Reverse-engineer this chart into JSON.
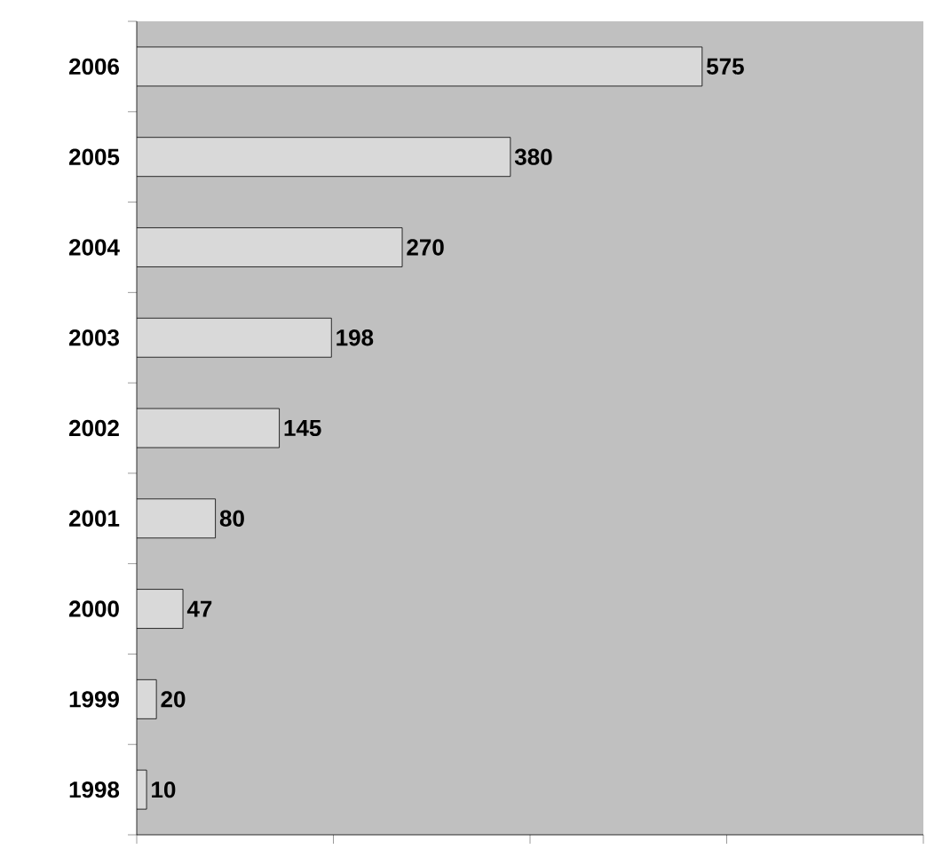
{
  "chart_data": {
    "type": "bar",
    "orientation": "horizontal",
    "categories": [
      "2006",
      "2005",
      "2004",
      "2003",
      "2002",
      "2001",
      "2000",
      "1999",
      "1998"
    ],
    "values": [
      575,
      380,
      270,
      198,
      145,
      80,
      47,
      20,
      10
    ],
    "color": "#d9d9d9",
    "data_labels": true,
    "xlim": [
      0,
      800
    ],
    "xticks": [
      {
        "value": 0,
        "label": null
      },
      {
        "value": 200,
        "label": null
      },
      {
        "value": 400,
        "label": null
      },
      {
        "value": 600,
        "label": null
      },
      {
        "value": 800,
        "label": null
      }
    ],
    "tick_labels": "y",
    "grid": false
  }
}
